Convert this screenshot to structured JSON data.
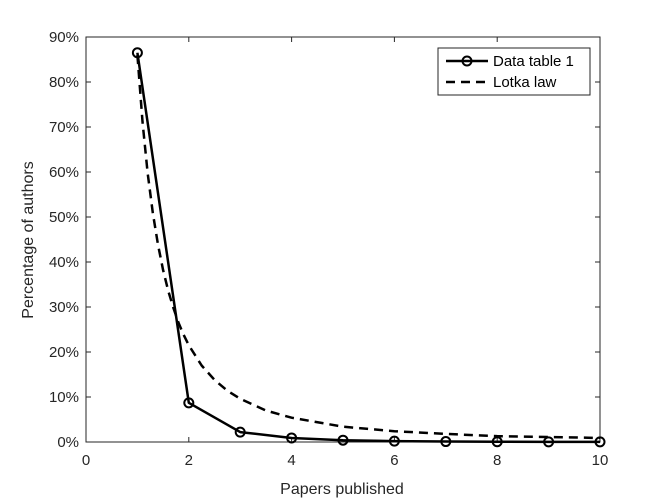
{
  "chart_data": {
    "type": "line",
    "title": "",
    "xlabel": "Papers published",
    "ylabel": "Percentage of authors",
    "xlim": [
      0,
      10
    ],
    "ylim": [
      0,
      0.9
    ],
    "x_ticks": [
      0,
      2,
      4,
      6,
      8,
      10
    ],
    "y_ticks": [
      0,
      0.1,
      0.2,
      0.3,
      0.4,
      0.5,
      0.6,
      0.7,
      0.8,
      0.9
    ],
    "x_tick_labels": [
      "0",
      "2",
      "4",
      "6",
      "8",
      "10"
    ],
    "y_tick_labels": [
      "0%",
      "10%",
      "20%",
      "30%",
      "40%",
      "50%",
      "60%",
      "70%",
      "80%",
      "90%"
    ],
    "grid": false,
    "legend_position": "top-right",
    "series": [
      {
        "name": "Data table 1",
        "style": "solid",
        "marker": "circle",
        "color": "#000000",
        "x": [
          1,
          2,
          3,
          4,
          5,
          6,
          7,
          8,
          9,
          10
        ],
        "y": [
          0.865,
          0.087,
          0.022,
          0.009,
          0.004,
          0.002,
          0.001,
          0.0005,
          0.0003,
          0.0002
        ]
      },
      {
        "name": "Lotka law",
        "style": "dashed",
        "marker": "none",
        "color": "#000000",
        "x": [
          1,
          1.1,
          1.2,
          1.3,
          1.4,
          1.5,
          1.6,
          1.7,
          1.8,
          1.9,
          2,
          2.25,
          2.5,
          2.75,
          3,
          3.5,
          4,
          5,
          6,
          7,
          8,
          9,
          10
        ],
        "y": [
          0.86,
          0.711,
          0.597,
          0.509,
          0.439,
          0.382,
          0.336,
          0.298,
          0.265,
          0.238,
          0.215,
          0.17,
          0.138,
          0.114,
          0.096,
          0.07,
          0.054,
          0.034,
          0.024,
          0.018,
          0.013,
          0.011,
          0.009
        ]
      }
    ]
  }
}
